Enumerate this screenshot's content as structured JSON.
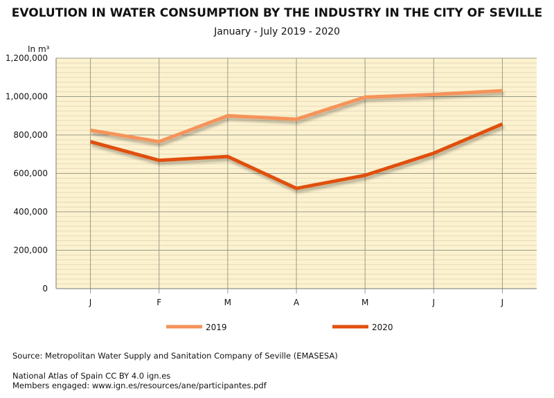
{
  "chart_data": {
    "type": "line",
    "title": "EVOLUTION IN WATER CONSUMPTION BY THE INDUSTRY IN THE CITY OF SEVILLE",
    "subtitle": "January - July 2019 - 2020",
    "ylabel": "In m³",
    "categories": [
      "J",
      "F",
      "M",
      "A",
      "M",
      "J",
      "J"
    ],
    "ylim": [
      0,
      1200000
    ],
    "yticks": [
      "0",
      "200,000",
      "400,000",
      "600,000",
      "800,000",
      "1,000,000",
      "1,200,000"
    ],
    "grid": true,
    "legend": "bottom",
    "series": [
      {
        "name": "2019",
        "color": "#f5935a",
        "values": [
          825000,
          765000,
          900000,
          882000,
          997000,
          1011000,
          1030000
        ]
      },
      {
        "name": "2020",
        "color": "#e0500e",
        "values": [
          765000,
          668000,
          688000,
          522000,
          590000,
          705000,
          857000
        ]
      }
    ]
  },
  "footer": {
    "source": "Source: Metropolitan Water Supply and Sanitation Company of Seville (EMASESA)",
    "atlas": "National Atlas of Spain CC BY 4.0 ign.es",
    "members": "Members engaged: www.ign.es/resources/ane/participantes.pdf"
  },
  "colors": {
    "plot_bg": "#fdf2cf"
  }
}
